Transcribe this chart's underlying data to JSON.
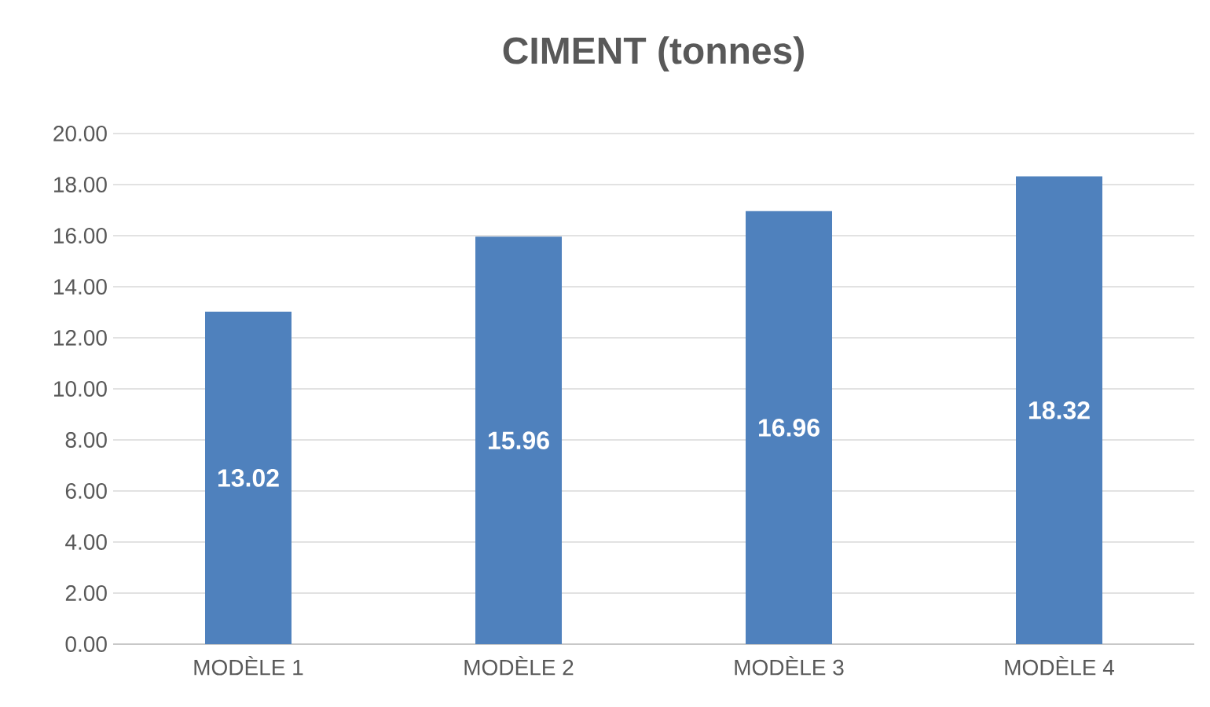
{
  "chart_data": {
    "type": "bar",
    "title": "CIMENT (tonnes)",
    "categories": [
      "MODÈLE 1",
      "MODÈLE 2",
      "MODÈLE 3",
      "MODÈLE 4"
    ],
    "values": [
      13.02,
      15.96,
      16.96,
      18.32
    ],
    "color": "#4f81bd",
    "ylim": [
      0,
      20
    ],
    "yticks": [
      {
        "value": 0,
        "label": "0.00"
      },
      {
        "value": 2,
        "label": "2.00"
      },
      {
        "value": 4,
        "label": "4.00"
      },
      {
        "value": 6,
        "label": "6.00"
      },
      {
        "value": 8,
        "label": "8.00"
      },
      {
        "value": 10,
        "label": "10.00"
      },
      {
        "value": 12,
        "label": "12.00"
      },
      {
        "value": 14,
        "label": "14.00"
      },
      {
        "value": 16,
        "label": "16.00"
      },
      {
        "value": 18,
        "label": "18.00"
      },
      {
        "value": 20,
        "label": "20.00"
      }
    ],
    "grid": "y",
    "data_labels": true
  }
}
